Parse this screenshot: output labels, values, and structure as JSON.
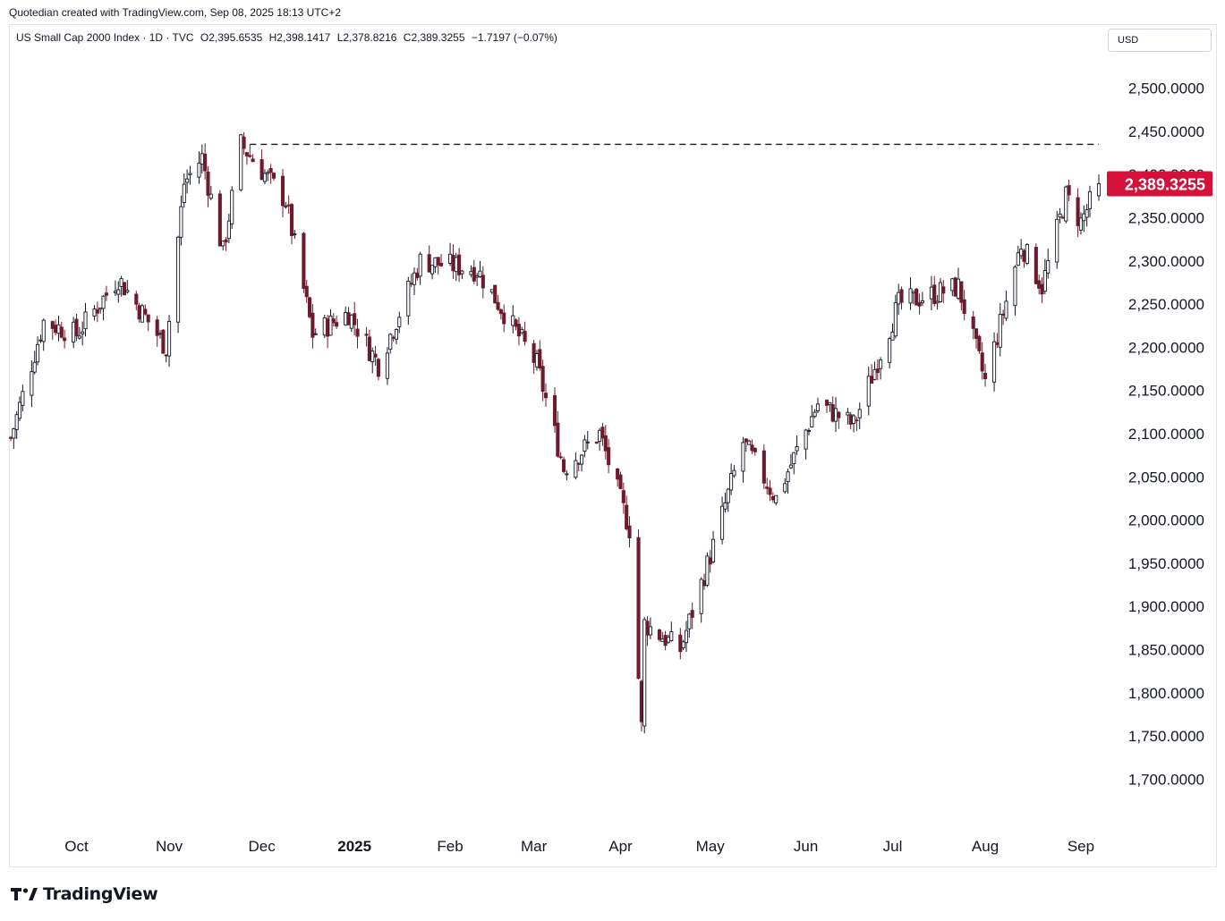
{
  "header": {
    "created_by": "Quotedian created with TradingView.com, Sep 08, 2025 18:13 UTC+2"
  },
  "legend": {
    "symbol": "US Small Cap 2000 Index · 1D · TVC",
    "open": "O2,395.6535",
    "high": "H2,398.1417",
    "low": "L2,378.8216",
    "close": "C2,389.3255",
    "change": "−1.7197 (−0.07%)"
  },
  "currency_button": "USD",
  "price_badge": "2,389.3255",
  "brand": "TradingView",
  "colors": {
    "up": "#131722",
    "down": "#6d1b2e",
    "badge": "#d4113a",
    "grid_text": "#131722",
    "reference_line": "#131722"
  },
  "chart_data": {
    "type": "candlestick",
    "ylim": [
      1660,
      2540
    ],
    "y_ticks": [
      "2,500.0000",
      "2,450.0000",
      "2,400.0000",
      "2,350.0000",
      "2,300.0000",
      "2,250.0000",
      "2,200.0000",
      "2,150.0000",
      "2,100.0000",
      "2,050.0000",
      "2,000.0000",
      "1,950.0000",
      "1,900.0000",
      "1,850.0000",
      "1,800.0000",
      "1,750.0000",
      "1,700.0000"
    ],
    "y_tick_values": [
      2500,
      2450,
      2400,
      2350,
      2300,
      2250,
      2200,
      2150,
      2100,
      2050,
      2000,
      1950,
      1900,
      1850,
      1800,
      1750,
      1700
    ],
    "x_labels": [
      {
        "label": "Oct",
        "date": "2024-10-01",
        "bold": false
      },
      {
        "label": "Nov",
        "date": "2024-11-01",
        "bold": false
      },
      {
        "label": "Dec",
        "date": "2024-12-02",
        "bold": false
      },
      {
        "label": "2025",
        "date": "2025-01-02",
        "bold": true
      },
      {
        "label": "Feb",
        "date": "2025-02-03",
        "bold": false
      },
      {
        "label": "Mar",
        "date": "2025-03-03",
        "bold": false
      },
      {
        "label": "Apr",
        "date": "2025-04-01",
        "bold": false
      },
      {
        "label": "May",
        "date": "2025-05-01",
        "bold": false
      },
      {
        "label": "Jun",
        "date": "2025-06-02",
        "bold": false
      },
      {
        "label": "Jul",
        "date": "2025-07-01",
        "bold": false
      },
      {
        "label": "Aug",
        "date": "2025-08-01",
        "bold": false
      },
      {
        "label": "Sep",
        "date": "2025-09-02",
        "bold": false
      }
    ],
    "date_range": [
      "2024-09-09",
      "2025-09-08"
    ],
    "reference_line": {
      "value": 2435,
      "from_date": "2024-11-28",
      "to_date": "2025-09-08",
      "style": "dashed"
    },
    "current_price": 2389.3255,
    "monthly_anchors": [
      {
        "date": "2024-09-09",
        "close": 2095
      },
      {
        "date": "2024-09-20",
        "close": 2230
      },
      {
        "date": "2024-10-01",
        "close": 2215
      },
      {
        "date": "2024-10-15",
        "close": 2280
      },
      {
        "date": "2024-10-31",
        "close": 2200
      },
      {
        "date": "2024-11-06",
        "close": 2390
      },
      {
        "date": "2024-11-12",
        "close": 2420
      },
      {
        "date": "2024-11-19",
        "close": 2310
      },
      {
        "date": "2024-11-25",
        "close": 2435
      },
      {
        "date": "2024-12-10",
        "close": 2370
      },
      {
        "date": "2024-12-19",
        "close": 2215
      },
      {
        "date": "2024-12-31",
        "close": 2240
      },
      {
        "date": "2025-01-10",
        "close": 2180
      },
      {
        "date": "2025-01-24",
        "close": 2300
      },
      {
        "date": "2025-02-12",
        "close": 2290
      },
      {
        "date": "2025-03-04",
        "close": 2180
      },
      {
        "date": "2025-03-13",
        "close": 2060
      },
      {
        "date": "2025-03-25",
        "close": 2100
      },
      {
        "date": "2025-04-04",
        "close": 1990
      },
      {
        "date": "2025-04-08",
        "close": 1760
      },
      {
        "date": "2025-04-09",
        "close": 1880
      },
      {
        "date": "2025-04-21",
        "close": 1850
      },
      {
        "date": "2025-05-02",
        "close": 1970
      },
      {
        "date": "2025-05-12",
        "close": 2090
      },
      {
        "date": "2025-05-23",
        "close": 2025
      },
      {
        "date": "2025-06-06",
        "close": 2135
      },
      {
        "date": "2025-06-18",
        "close": 2110
      },
      {
        "date": "2025-07-03",
        "close": 2250
      },
      {
        "date": "2025-07-23",
        "close": 2270
      },
      {
        "date": "2025-08-01",
        "close": 2160
      },
      {
        "date": "2025-08-13",
        "close": 2320
      },
      {
        "date": "2025-08-20",
        "close": 2270
      },
      {
        "date": "2025-08-28",
        "close": 2375
      },
      {
        "date": "2025-09-02",
        "close": 2345
      },
      {
        "date": "2025-09-08",
        "close": 2389.3255
      }
    ]
  }
}
